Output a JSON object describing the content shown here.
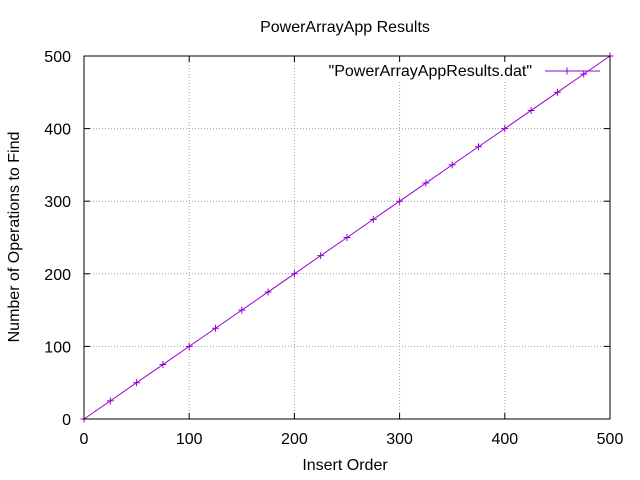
{
  "chart_data": {
    "type": "line",
    "title": "PowerArrayApp Results",
    "xlabel": "Insert Order",
    "ylabel": "Number of Operations to Find",
    "xlim": [
      0,
      500
    ],
    "ylim": [
      0,
      500
    ],
    "xticks": [
      0,
      100,
      200,
      300,
      400,
      500
    ],
    "yticks": [
      0,
      100,
      200,
      300,
      400,
      500
    ],
    "grid": true,
    "legend_position": "top-right",
    "series": [
      {
        "name": "\"PowerArrayAppResults.dat\"",
        "color": "#9400d3",
        "marker": "plus",
        "x": [
          0,
          25,
          50,
          75,
          100,
          125,
          150,
          175,
          200,
          225,
          250,
          275,
          300,
          325,
          350,
          375,
          400,
          425,
          450,
          475,
          500
        ],
        "y": [
          0,
          25,
          50,
          75,
          100,
          125,
          150,
          175,
          200,
          225,
          250,
          275,
          300,
          325,
          350,
          375,
          400,
          425,
          450,
          475,
          500
        ]
      }
    ]
  }
}
